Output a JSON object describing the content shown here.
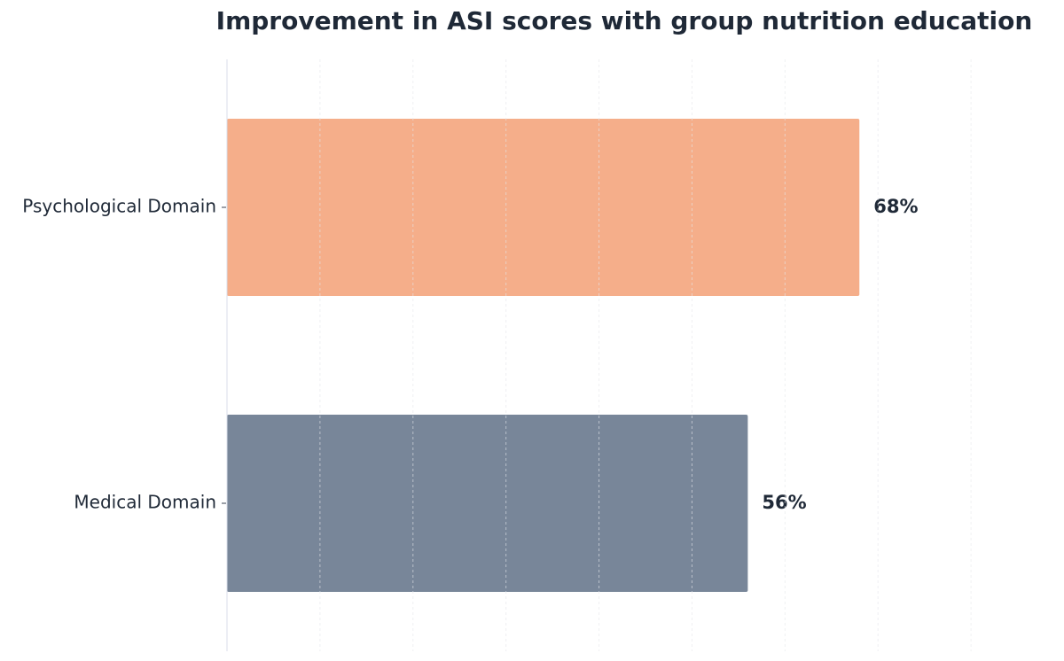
{
  "chart_data": {
    "type": "hbar",
    "title": "Improvement in ASI scores with group nutrition education",
    "categories": [
      "Psychological Domain",
      "Medical Domain"
    ],
    "values": [
      68,
      56
    ],
    "value_labels": [
      "68%",
      "56%"
    ],
    "colors": [
      "#f5ae8a",
      "#788699"
    ],
    "xlim": [
      0,
      90
    ],
    "xticks": [
      0,
      10,
      20,
      30,
      40,
      50,
      60,
      70,
      80
    ],
    "grid": true
  }
}
